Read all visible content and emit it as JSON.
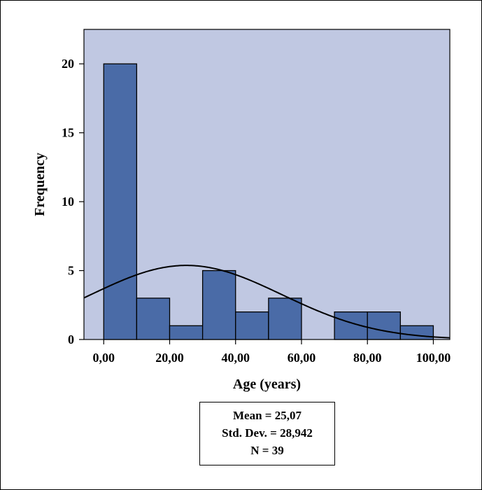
{
  "chart_data": {
    "type": "bar",
    "subtype": "histogram",
    "xlabel": "Age (years)",
    "ylabel": "Frequency",
    "bin_width": 10,
    "bins": [
      {
        "start": 0,
        "end": 10,
        "count": 20
      },
      {
        "start": 10,
        "end": 20,
        "count": 3
      },
      {
        "start": 20,
        "end": 30,
        "count": 1
      },
      {
        "start": 30,
        "end": 40,
        "count": 5
      },
      {
        "start": 40,
        "end": 50,
        "count": 2
      },
      {
        "start": 50,
        "end": 60,
        "count": 3
      },
      {
        "start": 60,
        "end": 70,
        "count": 0
      },
      {
        "start": 70,
        "end": 80,
        "count": 2
      },
      {
        "start": 80,
        "end": 90,
        "count": 2
      },
      {
        "start": 90,
        "end": 100,
        "count": 1
      }
    ],
    "xlim": [
      -6,
      105
    ],
    "ylim": [
      0,
      22.5
    ],
    "x_ticks": [
      0,
      20,
      40,
      60,
      80,
      100
    ],
    "x_tick_labels": [
      "0,00",
      "20,00",
      "40,00",
      "60,00",
      "80,00",
      "100,00"
    ],
    "y_ticks": [
      0,
      5,
      10,
      15,
      20
    ],
    "y_tick_labels": [
      "0",
      "5",
      "10",
      "15",
      "20"
    ],
    "normal_curve": {
      "mean": 25.07,
      "sd": 28.942,
      "n": 39
    },
    "stats": {
      "mean": "Mean = 25,07",
      "sd": "Std. Dev. = 28,942",
      "n": "N = 39"
    },
    "colors": {
      "plot_bg": "#c0c8e2",
      "bar_fill": "#4a6ba7",
      "bar_stroke": "#000000",
      "curve": "#000000"
    }
  }
}
